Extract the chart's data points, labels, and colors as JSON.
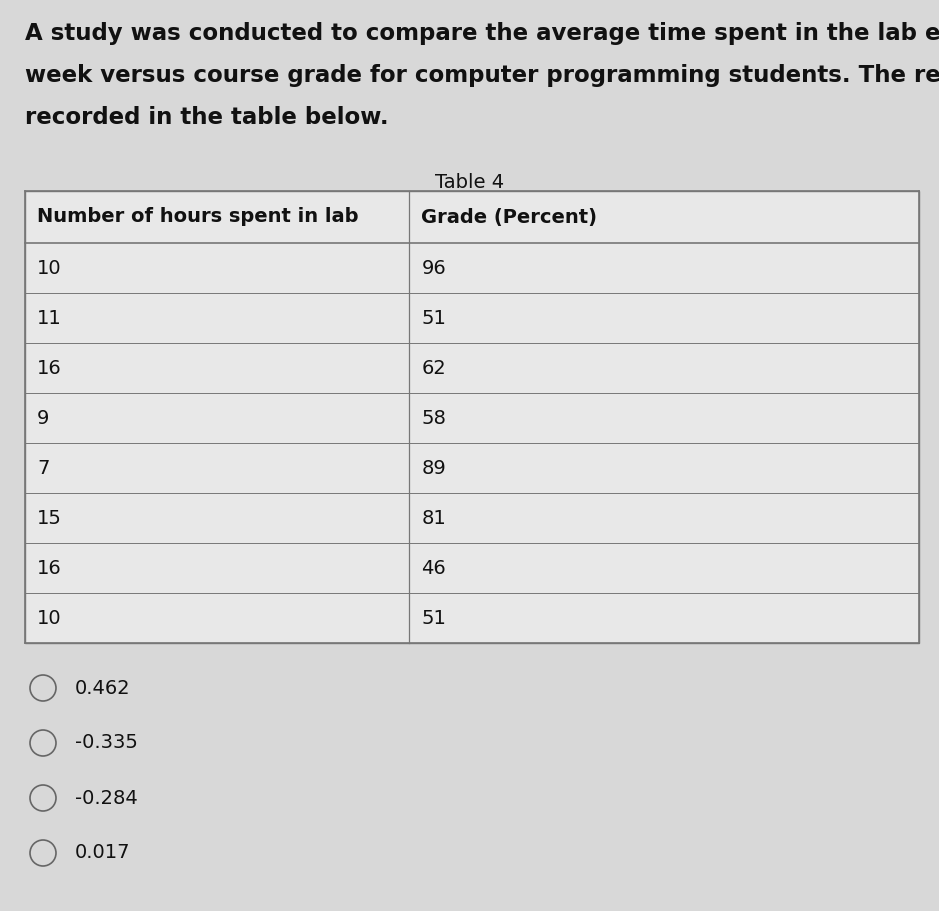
{
  "title_lines": [
    "A study was conducted to compare the average time spent in the lab each",
    "week versus course grade for computer programming students. The results are",
    "recorded in the table below."
  ],
  "table_title": "Table 4",
  "col1_header": "Number of hours spent in lab",
  "col2_header": "Grade (Percent)",
  "col1_data": [
    "10",
    "11",
    "16",
    "9",
    "7",
    "15",
    "16",
    "10"
  ],
  "col2_data": [
    "96",
    "51",
    "62",
    "58",
    "89",
    "81",
    "46",
    "51"
  ],
  "options": [
    "0.462",
    "-0.335",
    "-0.284",
    "0.017"
  ],
  "bg_color": "#d8d8d8",
  "table_bg": "#e8e8e8",
  "line_color": "#777777",
  "text_color": "#111111",
  "header_fontsize": 14,
  "body_fontsize": 14,
  "title_fontsize": 16.5,
  "table_title_fontsize": 14,
  "option_fontsize": 14,
  "col_split": 0.43
}
